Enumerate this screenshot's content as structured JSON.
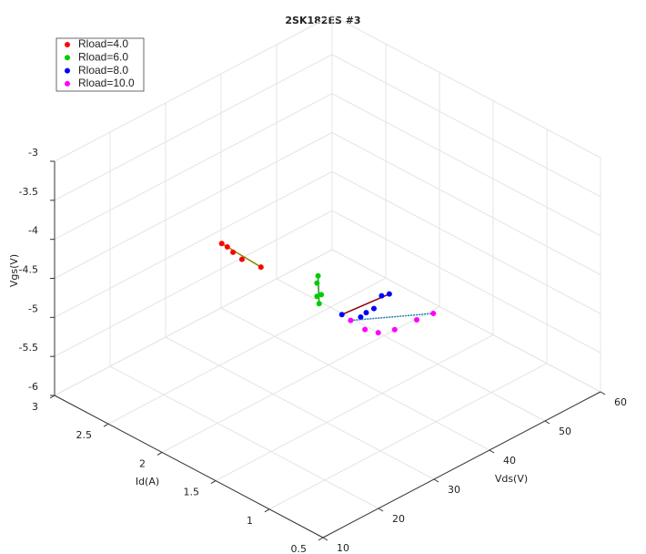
{
  "chart_data": {
    "type": "scatter3d",
    "title": "2SK182ES #3",
    "x_label": "Vds(V)",
    "y_label": "Id(A)",
    "z_label": "Vgs(V)",
    "xlim": [
      10,
      60
    ],
    "xticks": [
      10,
      20,
      30,
      40,
      50,
      60
    ],
    "ylim": [
      0.5,
      3
    ],
    "yticks": [
      0.5,
      1,
      1.5,
      2,
      2.5,
      3
    ],
    "zlim": [
      -6,
      -3
    ],
    "zticks": [
      -6,
      -5.5,
      -5,
      -4.5,
      -4,
      -3.5,
      -3
    ],
    "grid": true,
    "legend": "upper left",
    "series": [
      {
        "name": "Rload=4.0",
        "color": "#ff0000",
        "fit_color": "#8a8a00",
        "x": [
          14,
          15,
          17,
          19,
          23
        ],
        "y": [
          1.65,
          1.65,
          1.7,
          1.72,
          1.75
        ],
        "z": [
          -3.22,
          -3.3,
          -3.48,
          -3.66,
          -3.93
        ]
      },
      {
        "name": "Rload=6.0",
        "color": "#00cc00",
        "fit_color": "#2e8b2e",
        "x": [
          30,
          30,
          30,
          30,
          30
        ],
        "y": [
          1.58,
          1.59,
          1.59,
          1.55,
          1.57
        ],
        "z": [
          -4.18,
          -4.28,
          -4.45,
          -4.4,
          -4.53
        ]
      },
      {
        "name": "Rload=8.0",
        "color": "#0000ff",
        "fit_color": "#8b0000",
        "x": [
          37,
          40,
          41,
          42,
          43,
          44
        ],
        "y": [
          1.72,
          1.7,
          1.7,
          1.68,
          1.66,
          1.64
        ],
        "z": [
          -5.04,
          -5.17,
          -5.15,
          -5.12,
          -4.98,
          -4.98
        ]
      },
      {
        "name": "Rload=10.0",
        "color": "#ff00ff",
        "fit_color": "#1f77b4",
        "x": [
          44,
          46,
          48,
          50,
          53,
          56
        ],
        "y": [
          2.0,
          1.97,
          1.95,
          1.9,
          1.85,
          1.85
        ],
        "z": [
          -5.58,
          -5.75,
          -5.85,
          -5.85,
          -5.8,
          -5.83
        ]
      }
    ]
  }
}
